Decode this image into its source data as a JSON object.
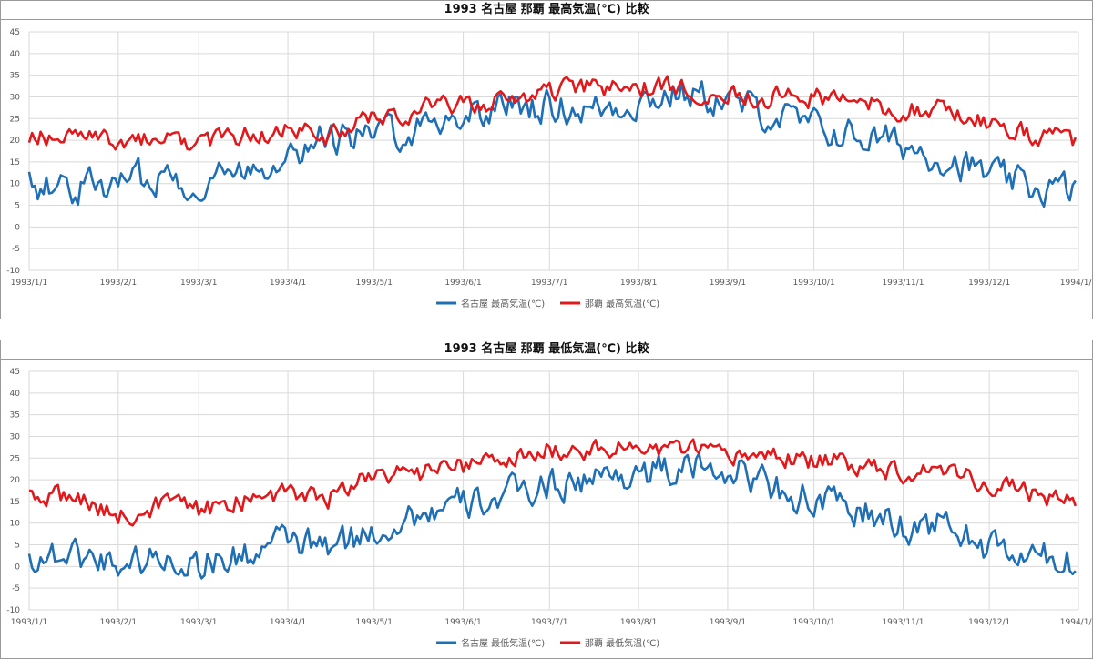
{
  "chart_data": [
    {
      "type": "line",
      "title": "1993 名古屋 那覇 最高気温(℃) 比較",
      "ylim": [
        -10,
        45
      ],
      "y_ticks": [
        "-10",
        "-5",
        "0",
        "5",
        "10",
        "15",
        "20",
        "25",
        "30",
        "35",
        "40",
        "45"
      ],
      "x_ticks": [
        "1993/1/1",
        "1993/2/1",
        "1993/3/1",
        "1993/4/1",
        "1993/5/1",
        "1993/6/1",
        "1993/7/1",
        "1993/8/1",
        "1993/9/1",
        "1993/10/1",
        "1993/11/1",
        "1993/12/1",
        "1994/1/1"
      ],
      "grid": true,
      "legend_position": "bottom",
      "series": [
        {
          "name": "名古屋 最高気温(℃)",
          "color": "#1f6fb5",
          "monthly_points": [
            [
              1,
              10
            ],
            [
              15,
              9
            ],
            [
              32,
              10
            ],
            [
              46,
              12
            ],
            [
              60,
              10
            ],
            [
              74,
              13
            ],
            [
              91,
              17
            ],
            [
              105,
              21
            ],
            [
              121,
              21
            ],
            [
              135,
              23
            ],
            [
              152,
              26
            ],
            [
              166,
              28
            ],
            [
              182,
              28
            ],
            [
              196,
              27
            ],
            [
              213,
              29
            ],
            [
              227,
              31
            ],
            [
              244,
              29
            ],
            [
              258,
              26
            ],
            [
              274,
              23
            ],
            [
              288,
              21
            ],
            [
              305,
              19
            ],
            [
              319,
              16
            ],
            [
              335,
              12
            ],
            [
              349,
              9
            ],
            [
              365,
              8.5
            ]
          ]
        },
        {
          "name": "那覇 最高気温(℃)",
          "color": "#e0191c",
          "monthly_points": [
            [
              1,
              21
            ],
            [
              15,
              21
            ],
            [
              32,
              19
            ],
            [
              46,
              21
            ],
            [
              60,
              19
            ],
            [
              74,
              21
            ],
            [
              91,
              22
            ],
            [
              105,
              21
            ],
            [
              121,
              25
            ],
            [
              135,
              27
            ],
            [
              152,
              28
            ],
            [
              166,
              29
            ],
            [
              182,
              31.5
            ],
            [
              196,
              32
            ],
            [
              213,
              32
            ],
            [
              227,
              32
            ],
            [
              244,
              31
            ],
            [
              258,
              30
            ],
            [
              274,
              30
            ],
            [
              288,
              29
            ],
            [
              305,
              27
            ],
            [
              319,
              27
            ],
            [
              335,
              24
            ],
            [
              349,
              21
            ],
            [
              365,
              20
            ]
          ]
        }
      ]
    },
    {
      "type": "line",
      "title": "1993 名古屋 那覇 最低気温(℃) 比較",
      "ylim": [
        -10,
        45
      ],
      "y_ticks": [
        "-10",
        "-5",
        "0",
        "5",
        "10",
        "15",
        "20",
        "25",
        "30",
        "35",
        "40",
        "45"
      ],
      "x_ticks": [
        "1993/1/1",
        "1993/2/1",
        "1993/3/1",
        "1993/4/1",
        "1993/5/1",
        "1993/6/1",
        "1993/7/1",
        "1993/8/1",
        "1993/9/1",
        "1993/10/1",
        "1993/11/1",
        "1993/12/1",
        "1994/1/1"
      ],
      "grid": true,
      "legend_position": "bottom",
      "series": [
        {
          "name": "名古屋 最低気温(℃)",
          "color": "#1f6fb5",
          "monthly_points": [
            [
              1,
              2
            ],
            [
              15,
              3
            ],
            [
              32,
              1
            ],
            [
              46,
              2
            ],
            [
              60,
              1
            ],
            [
              74,
              2
            ],
            [
              91,
              6
            ],
            [
              105,
              4
            ],
            [
              121,
              8
            ],
            [
              135,
              12
            ],
            [
              152,
              14
            ],
            [
              166,
              16
            ],
            [
              182,
              19
            ],
            [
              196,
              20
            ],
            [
              213,
              22
            ],
            [
              227,
              22
            ],
            [
              244,
              23
            ],
            [
              258,
              19
            ],
            [
              274,
              15
            ],
            [
              288,
              13
            ],
            [
              305,
              9
            ],
            [
              319,
              10
            ],
            [
              335,
              4
            ],
            [
              349,
              2
            ],
            [
              365,
              1
            ]
          ]
        },
        {
          "name": "那覇 最低気温(℃)",
          "color": "#e0191c",
          "monthly_points": [
            [
              1,
              16
            ],
            [
              15,
              16
            ],
            [
              32,
              12
            ],
            [
              46,
              14
            ],
            [
              60,
              13
            ],
            [
              74,
              15
            ],
            [
              91,
              17
            ],
            [
              105,
              16
            ],
            [
              121,
              21
            ],
            [
              135,
              21
            ],
            [
              152,
              23
            ],
            [
              166,
              24
            ],
            [
              182,
              27
            ],
            [
              196,
              27
            ],
            [
              213,
              27
            ],
            [
              227,
              27
            ],
            [
              244,
              25
            ],
            [
              258,
              26
            ],
            [
              274,
              24
            ],
            [
              288,
              24
            ],
            [
              305,
              22
            ],
            [
              319,
              23
            ],
            [
              335,
              19
            ],
            [
              349,
              17
            ],
            [
              365,
              15
            ]
          ]
        }
      ]
    }
  ]
}
